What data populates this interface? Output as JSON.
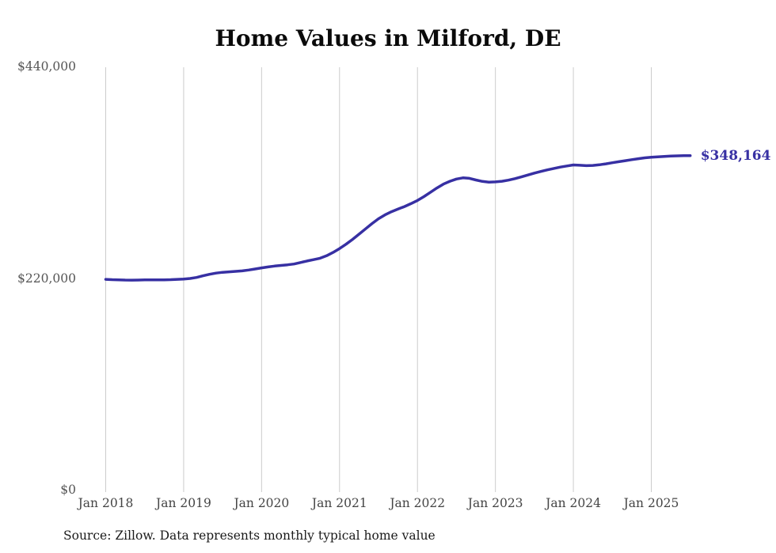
{
  "chart_data": {
    "type": "line",
    "title": "Home Values in Milford, DE",
    "source_note": "Source: Zillow. Data represents monthly typical home value",
    "end_label": "$348,164",
    "end_value": 348164,
    "line_color": "#3730a3",
    "grid_color": "#cccccc",
    "label_color": "#555555",
    "ylim": [
      0,
      440000
    ],
    "grid": "vertical-only",
    "legend_position": "none",
    "yticks": [
      {
        "value": 0,
        "label": "$0"
      },
      {
        "value": 220000,
        "label": "$220,000"
      },
      {
        "value": 440000,
        "label": "$440,000"
      }
    ],
    "xticks": [
      "Jan 2018",
      "Jan 2019",
      "Jan 2020",
      "Jan 2021",
      "Jan 2022",
      "Jan 2023",
      "Jan 2024",
      "Jan 2025"
    ],
    "x_start": "2018-01",
    "x_end": "2025-07",
    "x_interval": "monthly",
    "series": [
      {
        "name": "Typical home value",
        "values": [
          219500,
          219200,
          219000,
          218800,
          218700,
          218800,
          218900,
          219000,
          219000,
          219000,
          219200,
          219500,
          219800,
          220400,
          221500,
          223200,
          224800,
          226000,
          226800,
          227300,
          227800,
          228300,
          229200,
          230300,
          231400,
          232400,
          233300,
          234000,
          234600,
          235500,
          237000,
          238600,
          240000,
          241500,
          244000,
          247500,
          251500,
          256000,
          261000,
          266500,
          272000,
          277500,
          282500,
          286500,
          289800,
          292500,
          295200,
          298200,
          301500,
          305500,
          310000,
          314500,
          318500,
          321500,
          323800,
          325000,
          324500,
          322800,
          321300,
          320600,
          320800,
          321500,
          322600,
          324200,
          326000,
          328000,
          330000,
          331700,
          333300,
          334800,
          336200,
          337400,
          338400,
          338100,
          337700,
          337900,
          338600,
          339600,
          340700,
          341800,
          342900,
          343900,
          344900,
          345800,
          346400,
          346900,
          347300,
          347600,
          347900,
          348050,
          348164
        ]
      }
    ]
  }
}
